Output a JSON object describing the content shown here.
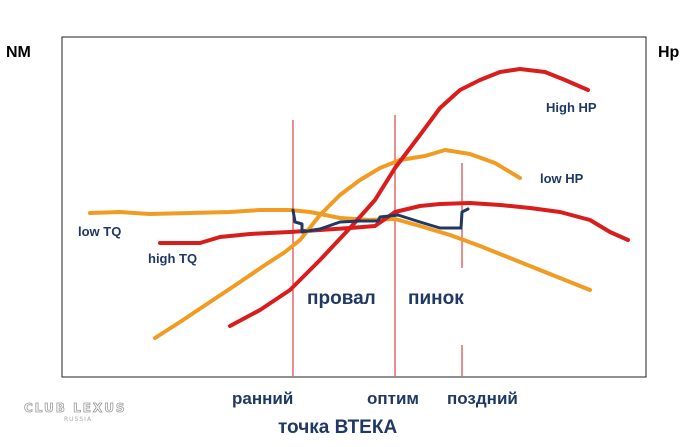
{
  "chart_data": {
    "type": "line",
    "title": "",
    "left_axis_label": "NM",
    "right_axis_label": "Hp",
    "x_ticks": [
      "ранний",
      "оптим",
      "поздний"
    ],
    "x_caption": "точка ВТЕКА",
    "zones": [
      "провал",
      "пинок"
    ],
    "series": [
      {
        "name": "low TQ",
        "color": "#f29b22",
        "points": [
          [
            90,
            213
          ],
          [
            120,
            212
          ],
          [
            150,
            214
          ],
          [
            190,
            213
          ],
          [
            230,
            212
          ],
          [
            260,
            210
          ],
          [
            290,
            210
          ],
          [
            310,
            212
          ],
          [
            340,
            218
          ],
          [
            370,
            220
          ],
          [
            395,
            219
          ],
          [
            420,
            226
          ],
          [
            450,
            235
          ],
          [
            480,
            246
          ],
          [
            510,
            258
          ],
          [
            540,
            270
          ],
          [
            570,
            282
          ],
          [
            590,
            290
          ]
        ]
      },
      {
        "name": "high TQ",
        "color": "#d91c1c",
        "points": [
          [
            160,
            243
          ],
          [
            200,
            243
          ],
          [
            220,
            237
          ],
          [
            250,
            234
          ],
          [
            290,
            232
          ],
          [
            320,
            230
          ],
          [
            350,
            228
          ],
          [
            375,
            226
          ],
          [
            395,
            212
          ],
          [
            420,
            206
          ],
          [
            440,
            204
          ],
          [
            470,
            203
          ],
          [
            500,
            205
          ],
          [
            530,
            208
          ],
          [
            560,
            212
          ],
          [
            590,
            220
          ],
          [
            610,
            232
          ],
          [
            628,
            240
          ]
        ]
      },
      {
        "name": "low HP",
        "color": "#f29b22",
        "points": [
          [
            155,
            338
          ],
          [
            180,
            322
          ],
          [
            210,
            302
          ],
          [
            240,
            282
          ],
          [
            265,
            265
          ],
          [
            285,
            252
          ],
          [
            300,
            240
          ],
          [
            320,
            215
          ],
          [
            340,
            195
          ],
          [
            360,
            180
          ],
          [
            380,
            168
          ],
          [
            400,
            160
          ],
          [
            425,
            156
          ],
          [
            445,
            150
          ],
          [
            470,
            154
          ],
          [
            495,
            163
          ],
          [
            520,
            178
          ]
        ]
      },
      {
        "name": "High HP",
        "color": "#d91c1c",
        "points": [
          [
            230,
            326
          ],
          [
            260,
            310
          ],
          [
            290,
            290
          ],
          [
            320,
            260
          ],
          [
            350,
            228
          ],
          [
            375,
            200
          ],
          [
            395,
            168
          ],
          [
            420,
            135
          ],
          [
            440,
            108
          ],
          [
            460,
            90
          ],
          [
            480,
            80
          ],
          [
            500,
            72
          ],
          [
            520,
            69
          ],
          [
            545,
            72
          ],
          [
            565,
            80
          ],
          [
            588,
            90
          ]
        ]
      },
      {
        "name": "",
        "color": "#1f3864",
        "points": [
          [
            293,
            210
          ],
          [
            295,
            222
          ],
          [
            302,
            224
          ],
          [
            302,
            232
          ],
          [
            320,
            229
          ],
          [
            340,
            222
          ],
          [
            360,
            221
          ],
          [
            378,
            221
          ],
          [
            380,
            217
          ],
          [
            398,
            215
          ],
          [
            420,
            222
          ],
          [
            440,
            228
          ],
          [
            461,
            228
          ],
          [
            462,
            212
          ],
          [
            468,
            209
          ]
        ]
      }
    ]
  },
  "watermark": {
    "logo": "CLUB LEXUS",
    "sub": "RUSSIA"
  }
}
